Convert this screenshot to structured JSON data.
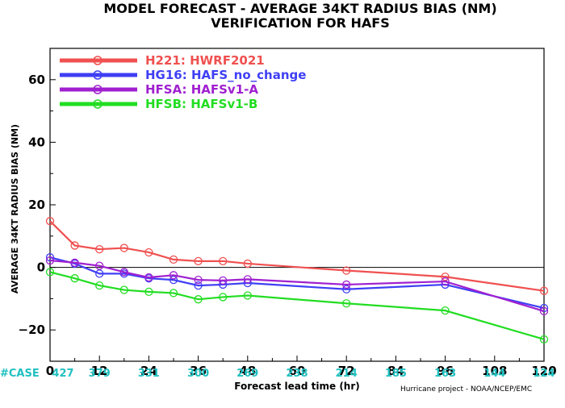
{
  "title_line1": "MODEL FORECAST - AVERAGE 34KT RADIUS BIAS (NM)",
  "title_line2": "VERIFICATION FOR HAFS",
  "credit": "Hurricane project - NOAA/NCEP/EMC",
  "case_label": "#CASE",
  "chart_data": {
    "type": "line",
    "xlabel": "Forecast lead time (hr)",
    "ylabel": "AVERAGE 34KT RADIUS BIAS (NM)",
    "xlim": [
      0,
      120
    ],
    "ylim": [
      -30,
      70
    ],
    "xticks": [
      0,
      12,
      24,
      36,
      48,
      60,
      72,
      84,
      96,
      108,
      120
    ],
    "yticks": [
      -20,
      0,
      20,
      40,
      60
    ],
    "ytick_labels": [
      "−20",
      "0",
      "20",
      "40",
      "60"
    ],
    "zero_line": true,
    "legend_position": "top-left",
    "case_counts": [
      {
        "x": 0,
        "label": "427"
      },
      {
        "x": 12,
        "label": "379"
      },
      {
        "x": 24,
        "label": "331"
      },
      {
        "x": 36,
        "label": "300"
      },
      {
        "x": 48,
        "label": "269"
      },
      {
        "x": 60,
        "label": "238"
      },
      {
        "x": 72,
        "label": "214"
      },
      {
        "x": 84,
        "label": "185"
      },
      {
        "x": 96,
        "label": "163"
      },
      {
        "x": 108,
        "label": "144"
      },
      {
        "x": 120,
        "label": "124"
      }
    ],
    "series": [
      {
        "name": "H221:  HWRF2021",
        "color": "#f05050",
        "points": [
          [
            0,
            14.8
          ],
          [
            6,
            7.0
          ],
          [
            12,
            5.8
          ],
          [
            18,
            6.2
          ],
          [
            24,
            4.8
          ],
          [
            30,
            2.5
          ],
          [
            36,
            2.0
          ],
          [
            42,
            2.0
          ],
          [
            48,
            1.2
          ],
          [
            72,
            -1.0
          ],
          [
            96,
            -3.0
          ],
          [
            120,
            -7.5
          ]
        ]
      },
      {
        "name": "HG16:  HAFS_no_change",
        "color": "#3f3ff5",
        "points": [
          [
            0,
            3.2
          ],
          [
            6,
            1.2
          ],
          [
            12,
            -2.0
          ],
          [
            18,
            -2.0
          ],
          [
            24,
            -3.5
          ],
          [
            30,
            -4.0
          ],
          [
            36,
            -5.8
          ],
          [
            42,
            -5.5
          ],
          [
            48,
            -5.0
          ],
          [
            72,
            -7.0
          ],
          [
            96,
            -5.5
          ],
          [
            120,
            -13.0
          ]
        ]
      },
      {
        "name": "HFSA:  HAFSv1-A",
        "color": "#a020d0",
        "points": [
          [
            0,
            2.2
          ],
          [
            6,
            1.5
          ],
          [
            12,
            0.5
          ],
          [
            18,
            -1.5
          ],
          [
            24,
            -3.2
          ],
          [
            30,
            -2.5
          ],
          [
            36,
            -4.0
          ],
          [
            42,
            -4.2
          ],
          [
            48,
            -3.8
          ],
          [
            72,
            -5.5
          ],
          [
            96,
            -4.5
          ],
          [
            120,
            -14.0
          ]
        ]
      },
      {
        "name": "HFSB:  HAFSv1-B",
        "color": "#22dd22",
        "points": [
          [
            0,
            -1.5
          ],
          [
            6,
            -3.5
          ],
          [
            12,
            -5.8
          ],
          [
            18,
            -7.2
          ],
          [
            24,
            -7.8
          ],
          [
            30,
            -8.2
          ],
          [
            36,
            -10.2
          ],
          [
            42,
            -9.5
          ],
          [
            48,
            -9.0
          ],
          [
            72,
            -11.5
          ],
          [
            96,
            -13.8
          ],
          [
            120,
            -23.0
          ]
        ]
      }
    ]
  }
}
